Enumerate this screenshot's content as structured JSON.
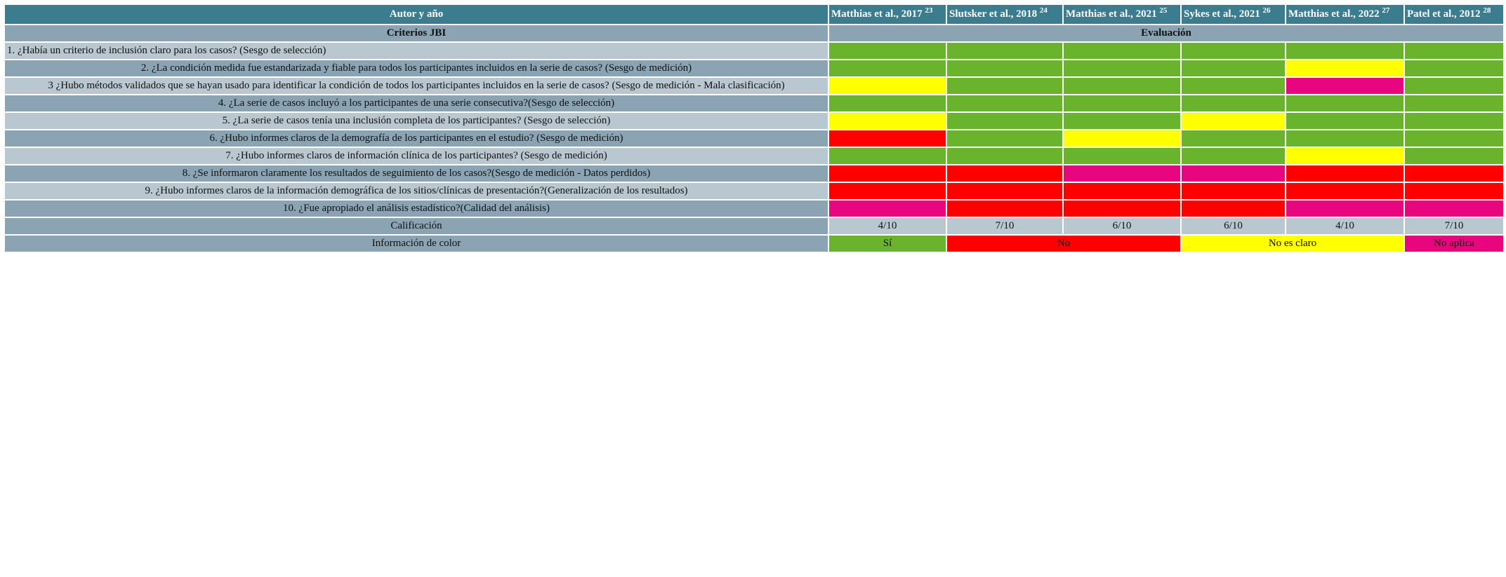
{
  "header": {
    "author_label": "Autor y año",
    "criteria_label": "Criterios JBI",
    "evaluation_label": "Evaluación"
  },
  "studies": [
    {
      "name": "Matthias et al., 2017",
      "ref": 23
    },
    {
      "name": "Slutsker et al., 2018",
      "ref": 24
    },
    {
      "name": "Matthias et al., 2021",
      "ref": 25
    },
    {
      "name": "Sykes et al., 2021",
      "ref": 26
    },
    {
      "name": "Matthias et al., 2022",
      "ref": 27
    },
    {
      "name": "Patel et al., 2012",
      "ref": 28
    }
  ],
  "criteria": [
    {
      "text": "1. ¿Había un criterio de inclusión claro para los casos? (Sesgo de selección)",
      "colors": [
        "#6ab42d",
        "#6ab42d",
        "#6ab42d",
        "#6ab42d",
        "#6ab42d",
        "#6ab42d"
      ]
    },
    {
      "text": "2. ¿La condición medida fue estandarizada y fiable para todos los participantes incluidos en la serie de casos? (Sesgo de medición)",
      "colors": [
        "#6ab42d",
        "#6ab42d",
        "#6ab42d",
        "#6ab42d",
        "#ffff00",
        "#6ab42d"
      ]
    },
    {
      "text": "3 ¿Hubo métodos validados que se hayan usado para identificar la condición de todos los participantes incluidos en la serie de casos? (Sesgo de medición - Mala clasificación)",
      "colors": [
        "#ffff00",
        "#6ab42d",
        "#6ab42d",
        "#6ab42d",
        "#e8067f",
        "#6ab42d"
      ]
    },
    {
      "text": "4. ¿La serie de casos incluyó a los participantes de una serie consecutiva?(Sesgo de selección)",
      "colors": [
        "#6ab42d",
        "#6ab42d",
        "#6ab42d",
        "#6ab42d",
        "#6ab42d",
        "#6ab42d"
      ]
    },
    {
      "text": "5. ¿La serie de casos tenía una inclusión completa de los participantes? (Sesgo de selección)",
      "colors": [
        "#ffff00",
        "#6ab42d",
        "#6ab42d",
        "#ffff00",
        "#6ab42d",
        "#6ab42d"
      ]
    },
    {
      "text": "6. ¿Hubo informes claros de la demografía de los participantes en el estudio? (Sesgo de medición)",
      "colors": [
        "#ff0000",
        "#6ab42d",
        "#ffff00",
        "#6ab42d",
        "#6ab42d",
        "#6ab42d"
      ]
    },
    {
      "text": "7. ¿Hubo informes claros de información clínica de los participantes? (Sesgo de medición)",
      "colors": [
        "#6ab42d",
        "#6ab42d",
        "#6ab42d",
        "#6ab42d",
        "#ffff00",
        "#6ab42d"
      ]
    },
    {
      "text": "8. ¿Se informaron claramente los resultados de seguimiento de los casos?(Sesgo de medición - Datos perdidos)",
      "colors": [
        "#ff0000",
        "#ff0000",
        "#e8067f",
        "#e8067f",
        "#ff0000",
        "#ff0000"
      ]
    },
    {
      "text": "9. ¿Hubo informes claros de la información demográfica de los sitios/clínicas de presentación?(Generalización de los resultados)",
      "colors": [
        "#ff0000",
        "#ff0000",
        "#ff0000",
        "#ff0000",
        "#ff0000",
        "#ff0000"
      ]
    },
    {
      "text": "10. ¿Fue apropiado el análisis estadístico?(Calidad del análisis)",
      "colors": [
        "#e8067f",
        "#ff0000",
        "#ff0000",
        "#ff0000",
        "#e8067f",
        "#e8067f"
      ]
    }
  ],
  "score_label": "Calificación",
  "scores": [
    "4/10",
    "7/10",
    "6/10",
    "6/10",
    "4/10",
    "7/10"
  ],
  "legend_label": "Información de color",
  "legend": [
    {
      "label": "Sí",
      "color": "#6ab42d",
      "span": 1
    },
    {
      "label": "No",
      "color": "#ff0000",
      "span": 2
    },
    {
      "label": "No es claro",
      "color": "#ffff00",
      "span": 2
    },
    {
      "label": "No aplica",
      "color": "#e8067f",
      "span": 1
    }
  ]
}
